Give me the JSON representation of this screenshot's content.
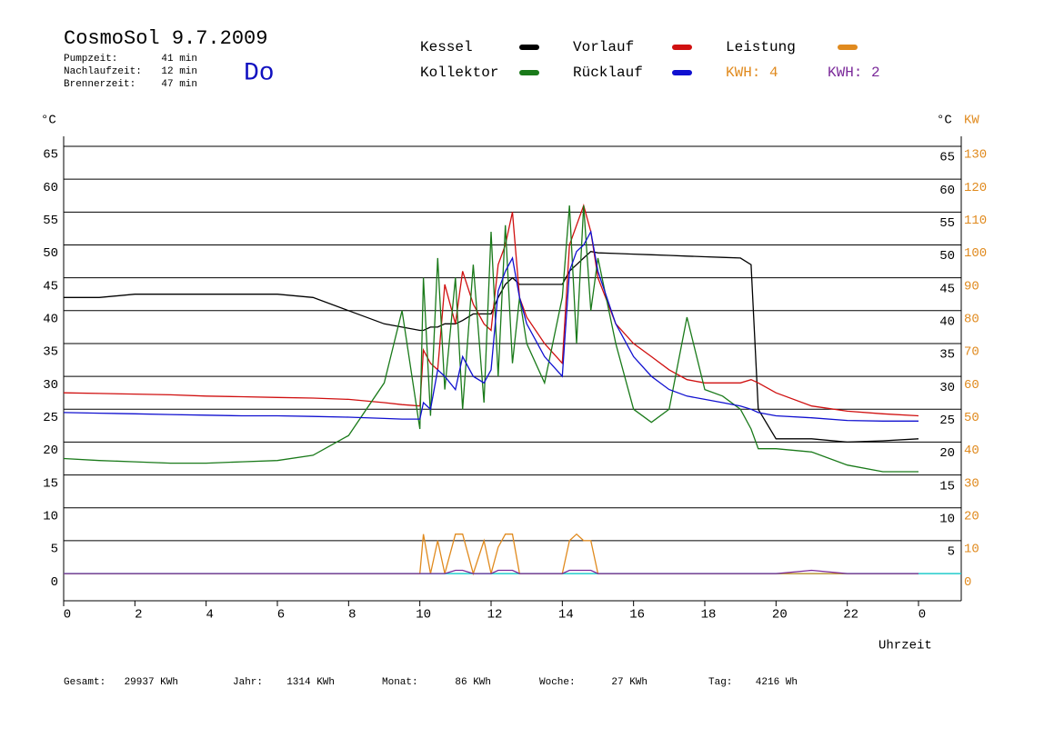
{
  "chart_data": {
    "type": "line",
    "title": "CosmoSol 9.7.2009",
    "day": "Do",
    "stats": [
      {
        "label": "Pumpzeit:",
        "value": "41 min"
      },
      {
        "label": "Nachlaufzeit:",
        "value": "12 min"
      },
      {
        "label": "Brennerzeit:",
        "value": "47 min"
      }
    ],
    "kwh_labels": [
      {
        "text": "KWH: 4",
        "color": "#e08a1e"
      },
      {
        "text": "KWH: 2",
        "color": "#7b2a9a"
      }
    ],
    "y_unit_left": "°C",
    "y_unit_right": "°C",
    "y2_unit": "KW",
    "x_label": "Uhrzeit",
    "footer": [
      {
        "label": "Gesamt:",
        "value": "29937 KWh"
      },
      {
        "label": "Jahr:",
        "value": "1314 KWh"
      },
      {
        "label": "Monat:",
        "value": "86 KWh"
      },
      {
        "label": "Woche:",
        "value": "27 KWh"
      },
      {
        "label": "Tag:",
        "value": "4216 Wh"
      }
    ],
    "x": [
      0,
      1,
      2,
      3,
      4,
      5,
      6,
      7,
      8,
      9,
      9.5,
      10,
      10.1,
      10.3,
      10.5,
      10.7,
      11,
      11.2,
      11.5,
      11.8,
      12,
      12.2,
      12.4,
      12.6,
      12.8,
      13,
      13.5,
      14,
      14.2,
      14.4,
      14.6,
      14.8,
      15,
      15.5,
      16,
      16.5,
      17,
      17.5,
      18,
      18.5,
      19,
      19.3,
      19.5,
      20,
      21,
      22,
      23,
      24
    ],
    "xlim": [
      0,
      25.2
    ],
    "xticks": [
      0,
      2,
      4,
      6,
      8,
      10,
      12,
      14,
      16,
      18,
      20,
      22,
      {
        "value": 24,
        "label": "0"
      }
    ],
    "ylim": [
      -4,
      65
    ],
    "yticks": [
      0,
      5,
      10,
      15,
      20,
      25,
      30,
      35,
      40,
      45,
      50,
      55,
      60,
      65
    ],
    "y2lim": [
      -8,
      130
    ],
    "y2ticks": [
      0,
      10,
      20,
      30,
      40,
      50,
      60,
      70,
      80,
      90,
      100,
      110,
      120,
      130
    ],
    "y2_color": "#e08a1e",
    "grid": true,
    "series": [
      {
        "name": "Kessel",
        "color": "#000000",
        "values": [
          42,
          42,
          42.5,
          42.5,
          42.5,
          42.5,
          42.5,
          42,
          40,
          38,
          37.5,
          37,
          37,
          37.5,
          37.5,
          38,
          38,
          38.5,
          39.5,
          39.5,
          39.5,
          42,
          44,
          45,
          44,
          44,
          44,
          44,
          46,
          47,
          48,
          49,
          48.8,
          48.7,
          48.6,
          48.5,
          48.4,
          48.3,
          48.2,
          48.1,
          48,
          47,
          25,
          20.5,
          20.5,
          20,
          20.2,
          20.5
        ]
      },
      {
        "name": "Vorlauf",
        "color": "#d01010",
        "values": [
          27.5,
          27.4,
          27.3,
          27.2,
          27,
          26.9,
          26.8,
          26.7,
          26.5,
          26,
          25.7,
          25.5,
          34,
          32,
          31,
          44,
          38,
          46,
          41,
          38,
          37,
          47,
          50,
          55,
          42,
          39,
          35,
          32,
          50,
          53,
          56,
          52,
          45,
          38,
          35,
          33,
          31,
          29.5,
          29,
          29,
          29,
          29.5,
          29,
          27.5,
          25.5,
          24.7,
          24.3,
          24
        ]
      },
      {
        "name": "Leistung",
        "color": "#e08a1e",
        "axis": "y2",
        "values": [
          0,
          0,
          0,
          0,
          0,
          0,
          0,
          0,
          0,
          0,
          0,
          0,
          12,
          0,
          10,
          0,
          12,
          12,
          0,
          10,
          0,
          8,
          12,
          12,
          0,
          0,
          0,
          0,
          10,
          12,
          10,
          10,
          0,
          0,
          0,
          0,
          0,
          0,
          0,
          0,
          0,
          0,
          0,
          0,
          0,
          0,
          0,
          0
        ]
      },
      {
        "name": "Kollektor",
        "color": "#1a7a1a",
        "values": [
          17.5,
          17.2,
          17,
          16.8,
          16.8,
          17,
          17.2,
          18,
          21,
          29,
          40,
          22,
          45,
          24,
          48,
          28,
          45,
          25,
          47,
          26,
          52,
          30,
          53,
          32,
          42,
          35,
          29,
          42,
          56,
          35,
          56,
          40,
          48,
          35,
          25,
          23,
          25,
          39,
          28,
          27,
          25,
          22,
          19,
          19,
          18.5,
          16.5,
          15.5,
          15.5
        ]
      },
      {
        "name": "Rücklauf",
        "color": "#1010d0",
        "values": [
          24.5,
          24.4,
          24.3,
          24.2,
          24.1,
          24,
          24,
          23.9,
          23.8,
          23.6,
          23.5,
          23.5,
          26,
          25,
          31,
          30,
          28,
          33,
          30,
          29,
          31,
          43,
          46,
          48,
          42,
          38,
          33,
          30,
          46,
          49,
          50,
          52,
          46,
          38,
          33,
          30,
          28,
          27,
          26.5,
          26,
          25.5,
          25,
          24.5,
          24,
          23.7,
          23.3,
          23.2,
          23.2
        ]
      },
      {
        "color": "#7b2a9a",
        "axis": "y2",
        "values": [
          0,
          0,
          0,
          0,
          0,
          0,
          0,
          0,
          0,
          0,
          0,
          0,
          0,
          0,
          0,
          0,
          1,
          1,
          0,
          0,
          0,
          1,
          1,
          1,
          0,
          0,
          0,
          0,
          1,
          1,
          1,
          1,
          0,
          0,
          0,
          0,
          0,
          0,
          0,
          0,
          0,
          0,
          0,
          0,
          1,
          0,
          0,
          0
        ]
      }
    ]
  }
}
